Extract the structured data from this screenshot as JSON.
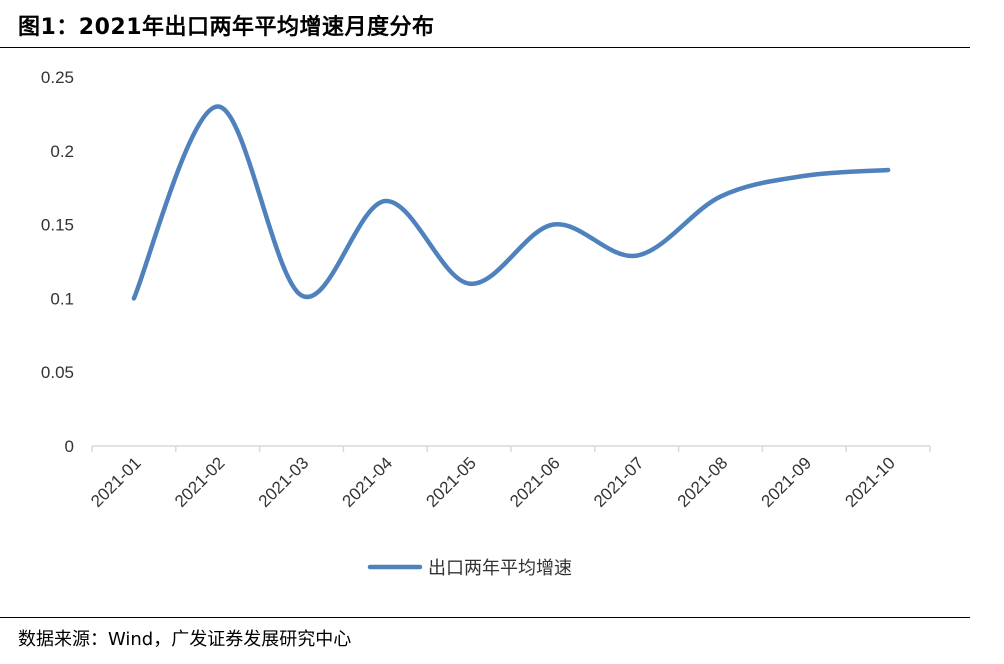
{
  "figure": {
    "title": "图1：2021年出口两年平均增速月度分布",
    "source": "数据来源：Wind，广发证券发展研究中心"
  },
  "chart_data": {
    "type": "line",
    "title": "",
    "xlabel": "",
    "ylabel": "",
    "categories": [
      "2021-01",
      "2021-02",
      "2021-03",
      "2021-04",
      "2021-05",
      "2021-06",
      "2021-07",
      "2021-08",
      "2021-09",
      "2021-10"
    ],
    "series": [
      {
        "name": "出口两年平均增速",
        "values": [
          0.1,
          0.23,
          0.102,
          0.166,
          0.11,
          0.15,
          0.129,
          0.169,
          0.183,
          0.187
        ],
        "color": "#4f81bd"
      }
    ],
    "ylim": [
      0,
      0.25
    ],
    "yticks": [
      "0",
      "0.05",
      "0.1",
      "0.15",
      "0.2",
      "0.25"
    ],
    "grid": false,
    "smooth": true,
    "legend_position": "bottom"
  }
}
